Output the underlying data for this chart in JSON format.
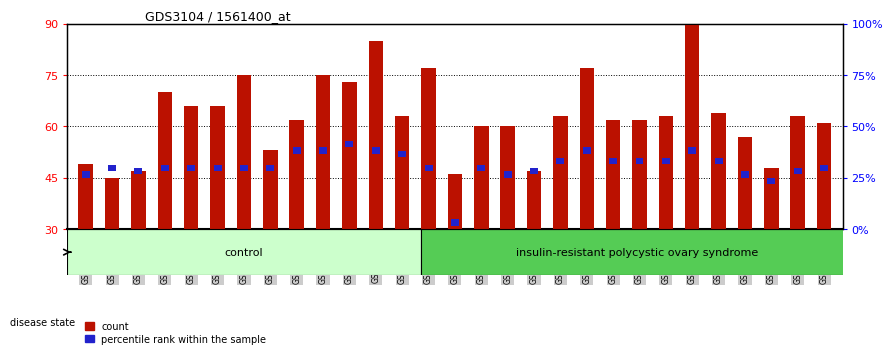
{
  "title": "GDS3104 / 1561400_at",
  "samples": [
    "GSM155631",
    "GSM155643",
    "GSM155644",
    "GSM155729",
    "GSM156170",
    "GSM156171",
    "GSM156176",
    "GSM156177",
    "GSM156178",
    "GSM156179",
    "GSM156180",
    "GSM156181",
    "GSM156184",
    "GSM156186",
    "GSM156187",
    "GSM156510",
    "GSM156511",
    "GSM156512",
    "GSM156749",
    "GSM156750",
    "GSM156751",
    "GSM156752",
    "GSM156753",
    "GSM156763",
    "GSM156946",
    "GSM156948",
    "GSM156949",
    "GSM156950",
    "GSM156951"
  ],
  "red_values": [
    49,
    45,
    47,
    70,
    66,
    66,
    75,
    53,
    62,
    75,
    73,
    85,
    63,
    77,
    46,
    60,
    60,
    47,
    63,
    77,
    62,
    62,
    63,
    90,
    64,
    57,
    48,
    63,
    61
  ],
  "blue_values": [
    46,
    48,
    47,
    48,
    48,
    48,
    48,
    48,
    53,
    53,
    55,
    53,
    52,
    48,
    32,
    48,
    46,
    47,
    50,
    53,
    50,
    50,
    50,
    53,
    50,
    46,
    44,
    47,
    48
  ],
  "n_control": 13,
  "ymin": 30,
  "ymax": 90,
  "yticks_left": [
    30,
    45,
    60,
    75,
    90
  ],
  "right_ticks_pct": [
    0,
    25,
    50,
    75,
    100
  ],
  "right_tick_labels": [
    "0%",
    "25%",
    "50%",
    "75%",
    "100%"
  ],
  "control_label": "control",
  "disease_label": "insulin-resistant polycystic ovary syndrome",
  "disease_state_label": "disease state",
  "legend_red": "count",
  "legend_blue": "percentile rank within the sample",
  "bar_color": "#bb1100",
  "blue_color": "#2222cc",
  "control_bg": "#ccffcc",
  "disease_bg": "#55cc55",
  "tick_bg": "#cccccc"
}
